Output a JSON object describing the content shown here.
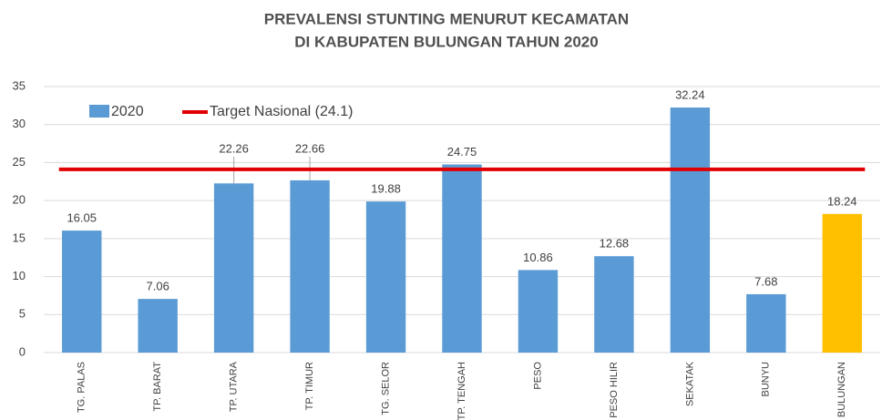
{
  "chart_data": {
    "type": "bar",
    "title": [
      "PREVALENSI STUNTING MENURUT KECAMATAN",
      "DI KABUPATEN BULUNGAN TAHUN 2020"
    ],
    "categories": [
      "TG. PALAS",
      "TP. BARAT",
      "TP. UTARA",
      "TP. TIMUR",
      "TG. SELOR",
      "TP. TENGAH",
      "PESO",
      "PESO HILIR",
      "SEKATAK",
      "BUNYU",
      "BULUNGAN"
    ],
    "series": [
      {
        "name": "2020",
        "color": "#5b9bd5",
        "values": [
          16.05,
          7.06,
          22.26,
          22.66,
          19.88,
          24.75,
          10.86,
          12.68,
          32.24,
          7.68,
          18.24
        ],
        "bar_colors": [
          "#5b9bd5",
          "#5b9bd5",
          "#5b9bd5",
          "#5b9bd5",
          "#5b9bd5",
          "#5b9bd5",
          "#5b9bd5",
          "#5b9bd5",
          "#5b9bd5",
          "#5b9bd5",
          "#ffc000"
        ]
      }
    ],
    "target": {
      "name": "Target Nasional (24.1)",
      "value": 24.1,
      "color": "#e00000"
    },
    "ylim": [
      0,
      35
    ],
    "yticks": [
      0,
      5,
      10,
      15,
      20,
      25,
      30,
      35
    ],
    "grid": true,
    "legend": "top-left"
  }
}
